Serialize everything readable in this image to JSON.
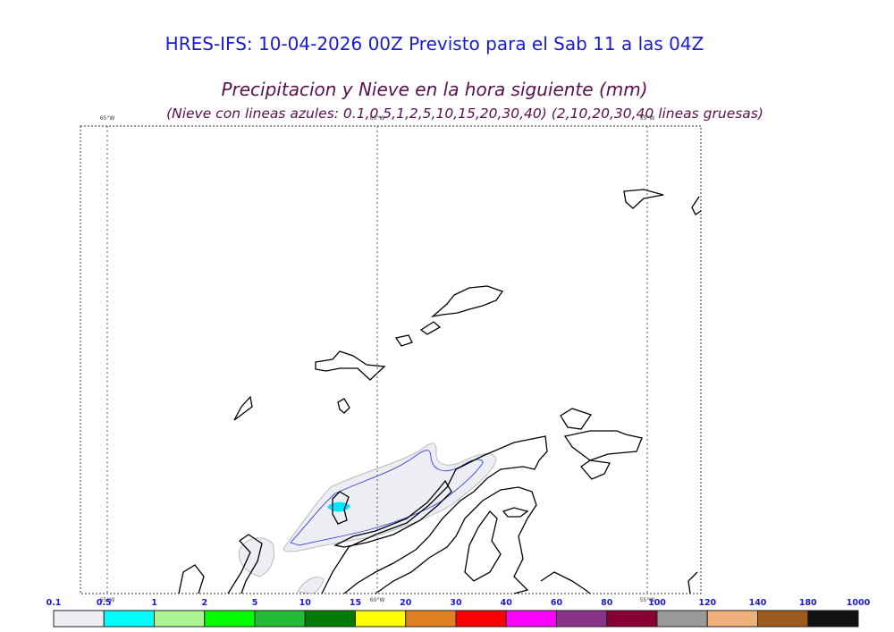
{
  "header": {
    "title": "HRES-IFS: 10-04-2026 00Z Previsto para el Sab 11 a las 04Z",
    "subtitle": "Precipitacion y Nieve en la hora siguiente (mm)",
    "note": "(Nieve con lineas azules: 0.1,0.5,1,2,5,10,15,20,30,40)  (2,10,20,30,40 lineas gruesas)"
  },
  "map": {
    "meridians": [
      "65°W",
      "60°W",
      "55°W"
    ]
  },
  "legend": {
    "labels": [
      "0.1",
      "0.5",
      "1",
      "2",
      "5",
      "10",
      "15",
      "20",
      "30",
      "40",
      "60",
      "80",
      "100",
      "120",
      "140",
      "180",
      "1000"
    ],
    "colors": [
      "#eeeef5",
      "#00ffff",
      "#aaf590",
      "#00ff00",
      "#22bb33",
      "#007a00",
      "#ffff00",
      "#e08020",
      "#ff0000",
      "#ff00ff",
      "#883388",
      "#880033",
      "#999999",
      "#f0b07a",
      "#a05a1e",
      "#111111"
    ]
  }
}
